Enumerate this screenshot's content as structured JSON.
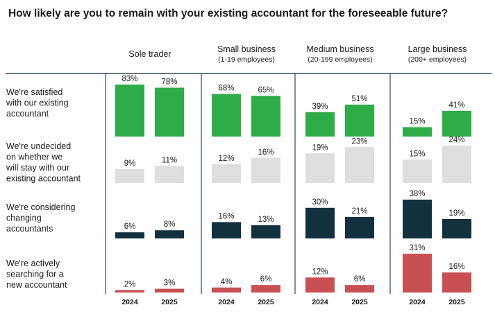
{
  "title": "How likely are you to remain with your existing accountant for the foreseeable future?",
  "chart_data": {
    "type": "bar",
    "title": "How likely are you to remain with your existing accountant for the foreseeable future?",
    "years": [
      "2024",
      "2025"
    ],
    "segments": [
      {
        "name": "Sole trader",
        "sub": ""
      },
      {
        "name": "Small business",
        "sub": "(1-19 employees)"
      },
      {
        "name": "Medium business",
        "sub": "(20-199 employees)"
      },
      {
        "name": "Large business",
        "sub": "(200+ employees)"
      }
    ],
    "series": [
      {
        "name": "We're satisfied with our existing accountant",
        "label_lines": [
          "We're satisfied",
          "with our existing",
          "accountant"
        ],
        "color": "#2eac47",
        "values": [
          [
            83,
            78
          ],
          [
            68,
            65
          ],
          [
            39,
            51
          ],
          [
            15,
            41
          ]
        ]
      },
      {
        "name": "We're undecided on whether we will stay with our existing accountant",
        "label_lines": [
          "We're undecided",
          "on whether we",
          "will stay with our",
          "existing accountant"
        ],
        "color": "#dedede",
        "values": [
          [
            9,
            11
          ],
          [
            12,
            16
          ],
          [
            19,
            23
          ],
          [
            15,
            24
          ]
        ]
      },
      {
        "name": "We're considering changing accountants",
        "label_lines": [
          "We're considering",
          "changing",
          "accountants"
        ],
        "color": "#13303f",
        "values": [
          [
            6,
            8
          ],
          [
            16,
            13
          ],
          [
            30,
            21
          ],
          [
            38,
            19
          ]
        ]
      },
      {
        "name": "We're actively searching for a new accountant",
        "label_lines": [
          "We're actively",
          "searching for a",
          "new accountant"
        ],
        "color": "#c84f52",
        "values": [
          [
            2,
            3
          ],
          [
            4,
            6
          ],
          [
            12,
            6
          ],
          [
            31,
            16
          ]
        ]
      }
    ],
    "value_suffix": "%",
    "grid": false,
    "legend": "none"
  }
}
